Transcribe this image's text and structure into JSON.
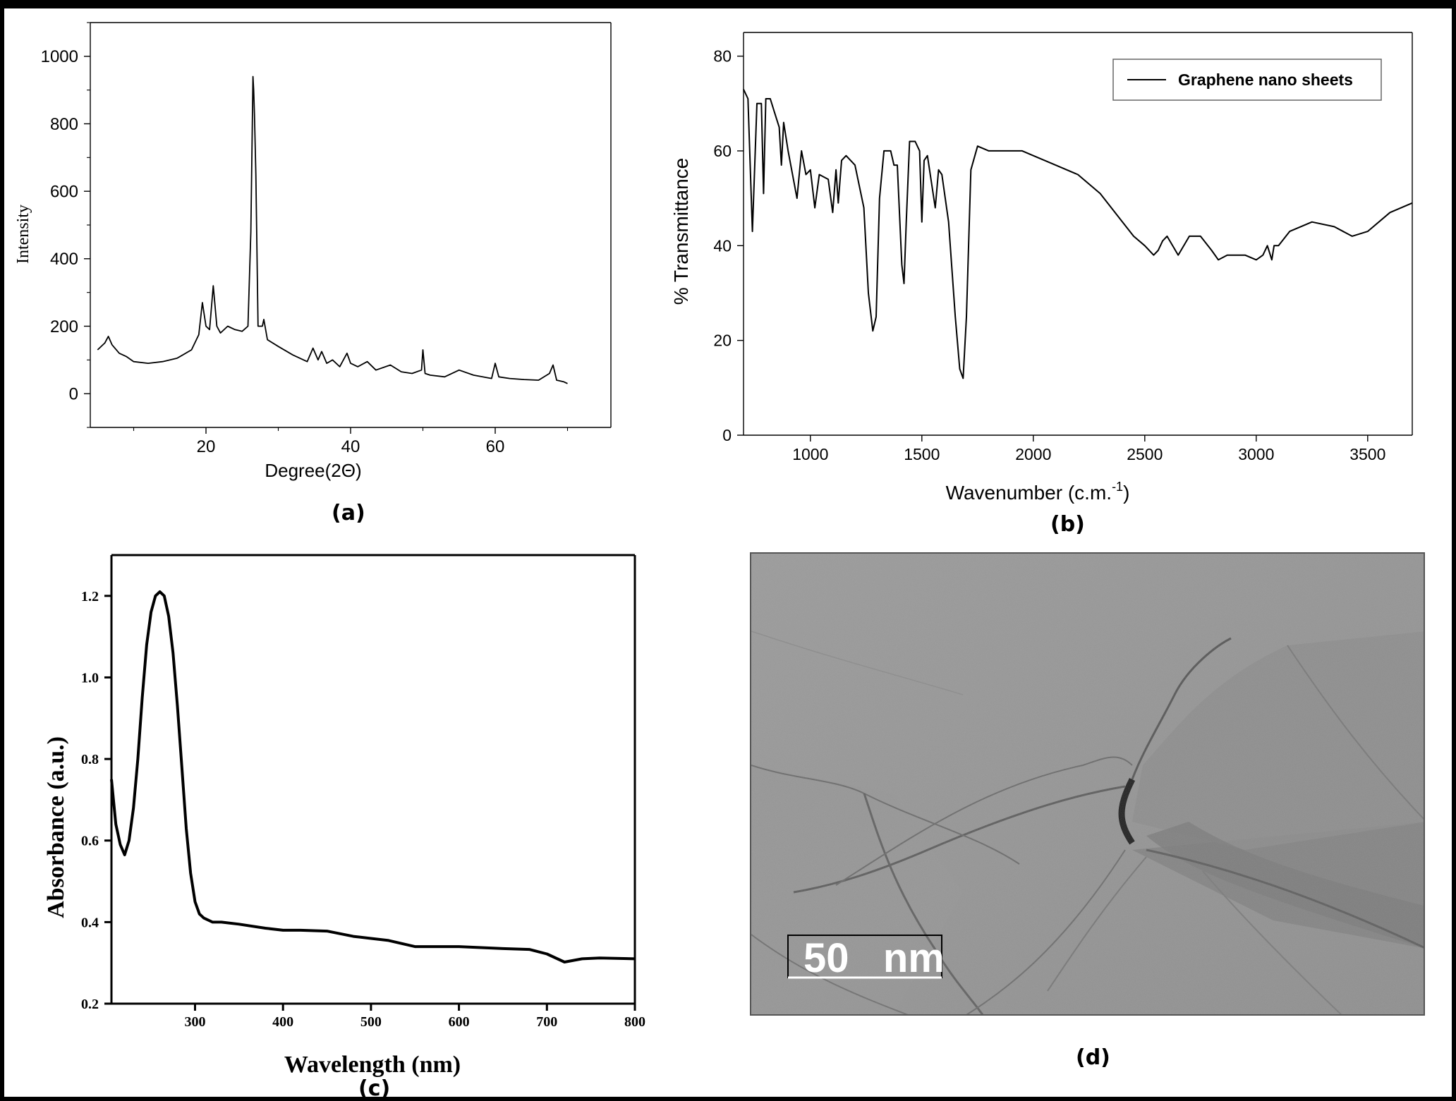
{
  "panels": {
    "a": {
      "label": "(a)"
    },
    "b": {
      "label": "(b)"
    },
    "c": {
      "label": "(c)"
    },
    "d": {
      "label": "(d)",
      "scalebar": "50   nm"
    }
  },
  "chart_data": [
    {
      "id": "a",
      "type": "line",
      "title": "",
      "xlabel": "Degree(2Θ)",
      "ylabel": "Intensity",
      "xlim": [
        4,
        76
      ],
      "ylim": [
        -100,
        1100
      ],
      "xticks": [
        20,
        40,
        60
      ],
      "yticks": [
        0,
        200,
        400,
        600,
        800,
        1000
      ],
      "series": [
        {
          "x": [
            5,
            6,
            6.5,
            7,
            8,
            9,
            10,
            12,
            14,
            16,
            18,
            19,
            19.5,
            20,
            20.5,
            21,
            21.5,
            22,
            23,
            24,
            25,
            25.8,
            26.2,
            26.5,
            26.6,
            26.7,
            26.9,
            27.2,
            27.8,
            28,
            28.5,
            30,
            32,
            34,
            34.8,
            35.5,
            36,
            36.7,
            37.5,
            38.5,
            39.5,
            40,
            41,
            42.3,
            43.5,
            45.5,
            47,
            48.5,
            49.8,
            50,
            50.3,
            51,
            53,
            55,
            57,
            59.5,
            60,
            60.5,
            62,
            64,
            66,
            67.5,
            68,
            68.5,
            69.5,
            70
          ],
          "y": [
            130,
            150,
            170,
            145,
            120,
            110,
            95,
            90,
            95,
            105,
            130,
            175,
            270,
            200,
            190,
            320,
            200,
            180,
            200,
            190,
            185,
            200,
            480,
            940,
            900,
            830,
            650,
            200,
            200,
            220,
            160,
            140,
            115,
            95,
            135,
            100,
            125,
            90,
            100,
            80,
            120,
            90,
            80,
            95,
            70,
            85,
            65,
            60,
            70,
            130,
            60,
            55,
            50,
            70,
            55,
            45,
            90,
            50,
            45,
            42,
            40,
            60,
            85,
            40,
            35,
            30
          ]
        }
      ]
    },
    {
      "id": "b",
      "type": "line",
      "title": "",
      "xlabel": "Wavenumber (c.m.",
      "xlabel_sup": "-1",
      "xlabel_end": ")",
      "ylabel": "% Transmittance",
      "xlim": [
        700,
        3700
      ],
      "ylim": [
        0,
        85
      ],
      "xticks": [
        1000,
        1500,
        2000,
        2500,
        3000,
        3500
      ],
      "yticks": [
        0,
        20,
        40,
        60,
        80
      ],
      "legend": {
        "position": "top-right",
        "entries": [
          "Graphene nano sheets"
        ]
      },
      "series": [
        {
          "name": "Graphene nano sheets",
          "x": [
            700,
            720,
            740,
            760,
            780,
            790,
            800,
            820,
            840,
            860,
            870,
            880,
            900,
            940,
            960,
            980,
            1000,
            1020,
            1040,
            1080,
            1100,
            1115,
            1125,
            1140,
            1160,
            1200,
            1240,
            1260,
            1280,
            1295,
            1310,
            1330,
            1360,
            1375,
            1390,
            1410,
            1420,
            1430,
            1445,
            1470,
            1490,
            1500,
            1510,
            1525,
            1560,
            1575,
            1590,
            1620,
            1650,
            1670,
            1685,
            1700,
            1720,
            1750,
            1800,
            1900,
            1950,
            2000,
            2100,
            2200,
            2300,
            2400,
            2450,
            2500,
            2540,
            2560,
            2580,
            2600,
            2650,
            2700,
            2750,
            2800,
            2830,
            2870,
            2900,
            2950,
            3000,
            3030,
            3050,
            3070,
            3080,
            3100,
            3150,
            3250,
            3350,
            3430,
            3500,
            3600,
            3700
          ],
          "y": [
            73,
            71,
            43,
            70,
            70,
            51,
            71,
            71,
            68,
            65,
            57,
            66,
            60,
            50,
            60,
            55,
            56,
            48,
            55,
            54,
            47,
            56,
            49,
            58,
            59,
            57,
            48,
            30,
            22,
            25,
            50,
            60,
            60,
            57,
            57,
            36,
            32,
            45,
            62,
            62,
            60,
            45,
            58,
            59,
            48,
            56,
            55,
            45,
            25,
            14,
            12,
            25,
            56,
            61,
            60,
            60,
            60,
            59,
            57,
            55,
            51,
            45,
            42,
            40,
            38,
            39,
            41,
            42,
            38,
            42,
            42,
            39,
            37,
            38,
            38,
            38,
            37,
            38,
            40,
            37,
            40,
            40,
            43,
            45,
            44,
            42,
            43,
            47,
            49
          ]
        }
      ]
    },
    {
      "id": "c",
      "type": "line",
      "title": "",
      "xlabel": "Wavelength (nm)",
      "ylabel": "Absorbance (a.u.)",
      "xlim": [
        205,
        800
      ],
      "ylim": [
        0.2,
        1.3
      ],
      "xticks": [
        300,
        400,
        500,
        600,
        700,
        800
      ],
      "yticks": [
        0.2,
        0.4,
        0.6,
        0.8,
        1.0,
        1.2
      ],
      "series": [
        {
          "x": [
            205,
            210,
            215,
            220,
            225,
            230,
            235,
            240,
            245,
            250,
            255,
            260,
            265,
            270,
            275,
            280,
            285,
            290,
            295,
            300,
            305,
            310,
            320,
            330,
            350,
            380,
            400,
            420,
            450,
            480,
            500,
            520,
            550,
            600,
            650,
            680,
            700,
            720,
            740,
            760,
            800
          ],
          "y": [
            0.75,
            0.64,
            0.59,
            0.565,
            0.6,
            0.68,
            0.8,
            0.95,
            1.08,
            1.16,
            1.2,
            1.21,
            1.2,
            1.15,
            1.06,
            0.93,
            0.78,
            0.63,
            0.52,
            0.45,
            0.42,
            0.41,
            0.4,
            0.4,
            0.395,
            0.385,
            0.38,
            0.38,
            0.378,
            0.365,
            0.36,
            0.355,
            0.34,
            0.34,
            0.335,
            0.333,
            0.322,
            0.302,
            0.31,
            0.312,
            0.31
          ]
        }
      ]
    }
  ]
}
